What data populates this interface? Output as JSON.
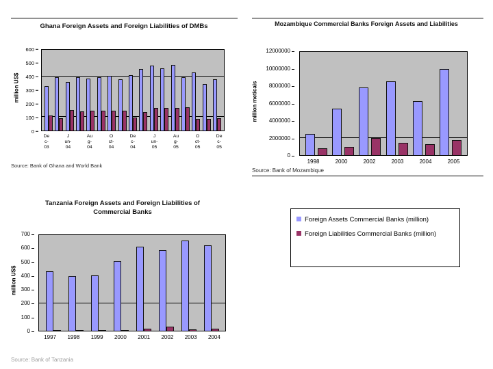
{
  "colors": {
    "assets": "#9999FF",
    "liabilities": "#993366",
    "plot_background": "#C0C0C0",
    "axis": "#000000"
  },
  "legend_box": {
    "items": [
      {
        "icon": "assets-series-swatch",
        "color": "#9999FF",
        "label": "Foreign Assets Commercial Banks (million)"
      },
      {
        "icon": "liabilities-series-swatch",
        "color": "#993366",
        "label": "Foreign Liabilities Commercial Banks (million)"
      }
    ]
  },
  "chart_data": [
    {
      "id": "ghana",
      "type": "bar",
      "title": "Ghana Foreign Assets and Foreign Liabilities of DMBs",
      "xlabel": "",
      "ylabel": "million US$",
      "source": "Source: Bank of Ghana and World Bank",
      "ylim": [
        0,
        600
      ],
      "yticks": [
        0,
        100,
        200,
        300,
        400,
        500,
        600
      ],
      "gridlines": [
        100,
        400
      ],
      "grid": "partial-horizontal",
      "legend_position": "none",
      "categories": [
        "Dec-03",
        "",
        "Jun-04",
        "",
        "Aug-04",
        "",
        "Oct-04",
        "",
        "Dec-04",
        "",
        "Jun-05",
        "",
        "Aug-05",
        "",
        "Oct-05",
        "",
        "Dec-05"
      ],
      "categories_display": [
        [
          "De",
          "c-",
          "03"
        ],
        [],
        [
          "J",
          "un-",
          "04"
        ],
        [],
        [
          "Au",
          "g-",
          "04"
        ],
        [],
        [
          "O",
          "ct-",
          "04"
        ],
        [],
        [
          "De",
          "c-",
          "04"
        ],
        [],
        [
          "J",
          "un-",
          "05"
        ],
        [],
        [
          "Au",
          "g-",
          "05"
        ],
        [],
        [
          "O",
          "ct-",
          "05"
        ],
        [],
        [
          "De",
          "c-",
          "05"
        ]
      ],
      "series": [
        {
          "name": "Foreign Assets",
          "color": "#9999FF",
          "values": [
            330,
            395,
            360,
            395,
            385,
            395,
            405,
            380,
            410,
            460,
            485,
            465,
            490,
            395,
            430,
            345,
            380
          ]
        },
        {
          "name": "Foreign Liabilities",
          "color": "#993366",
          "values": [
            110,
            90,
            155,
            140,
            145,
            145,
            145,
            145,
            95,
            135,
            170,
            170,
            170,
            175,
            85,
            85,
            90
          ]
        }
      ]
    },
    {
      "id": "mozambique",
      "type": "bar",
      "title": "Mozambique Commercial Banks Foreign Assets and Liabilities",
      "xlabel": "",
      "ylabel": "million meticais",
      "source": "Source: Bank of Mozambique",
      "ylim": [
        0,
        12000000
      ],
      "yticks": [
        0,
        2000000,
        4000000,
        6000000,
        8000000,
        10000000,
        12000000
      ],
      "gridlines": [
        2000000
      ],
      "grid": "partial-horizontal",
      "legend_position": "none",
      "categories": [
        "1998",
        "2000",
        "2002",
        "2003",
        "2004",
        "2005"
      ],
      "series": [
        {
          "name": "Foreign Assets",
          "color": "#9999FF",
          "values": [
            2500000,
            5400000,
            7900000,
            8600000,
            6300000,
            10000000
          ]
        },
        {
          "name": "Foreign Liabilities",
          "color": "#993366",
          "values": [
            800000,
            950000,
            1950000,
            1400000,
            1300000,
            1750000
          ]
        }
      ]
    },
    {
      "id": "tanzania",
      "type": "bar",
      "title": "Tanzania Foreign Assets and Foreign Liabilities of Commercial Banks",
      "xlabel": "",
      "ylabel": "million US$",
      "source": "Source: Bank of Tanzania",
      "ylim": [
        0,
        700
      ],
      "yticks": [
        0,
        100,
        200,
        300,
        400,
        500,
        600,
        700
      ],
      "gridlines": [
        200
      ],
      "grid": "partial-horizontal",
      "legend_position": "none",
      "categories": [
        "1997",
        "1998",
        "1999",
        "2000",
        "2001",
        "2002",
        "2003",
        "2004"
      ],
      "series": [
        {
          "name": "Foreign Assets",
          "color": "#9999FF",
          "values": [
            435,
            400,
            405,
            510,
            615,
            590,
            660,
            625
          ]
        },
        {
          "name": "Foreign Liabilities",
          "color": "#993366",
          "values": [
            5,
            3,
            3,
            3,
            15,
            30,
            8,
            15
          ]
        }
      ]
    }
  ]
}
